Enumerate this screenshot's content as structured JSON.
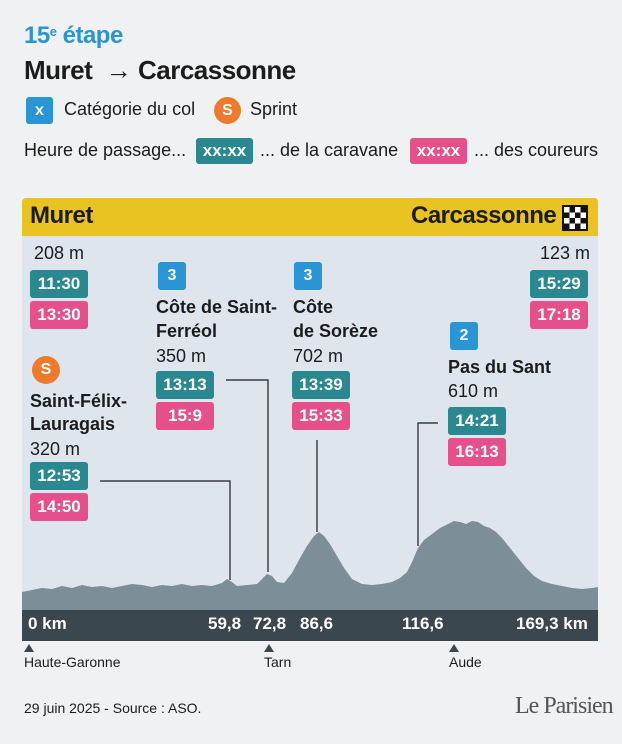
{
  "header": {
    "stage_number": "15",
    "stage_suffix": "e",
    "stage_word": "étape",
    "route_from": "Muret",
    "route_arrow": "→",
    "route_to": "Carcassonne"
  },
  "legend": {
    "category_badge": "x",
    "category_label": "Catégorie du col",
    "sprint_badge": "S",
    "sprint_label": "Sprint",
    "passage_label": "Heure de passage...",
    "caravan_chip": "xx:xx",
    "caravan_label": "... de la caravane",
    "riders_chip": "xx:xx",
    "riders_label": "... des coureurs"
  },
  "colors": {
    "blue": "#2a95d4",
    "orange": "#ee7b2d",
    "teal": "#2a8891",
    "pink": "#e5508a",
    "yellow": "#e8c321",
    "dark": "#3a474e",
    "profile": "#7c8e97"
  },
  "profile": {
    "start_name": "Muret",
    "finish_name": "Carcassonne",
    "start": {
      "altitude": "208 m",
      "caravan": "11:30",
      "riders": "13:30"
    },
    "finish": {
      "altitude": "123 m",
      "caravan": "15:29",
      "riders": "17:18"
    },
    "points": [
      {
        "badge": "S",
        "name1": "Saint-Félix-",
        "name2": "Lauragais",
        "altitude": "320 m",
        "caravan": "12:53",
        "riders": "14:50",
        "km": "59,8"
      },
      {
        "badge": "3",
        "name1": "Côte de Saint-",
        "name2": "Ferréol",
        "altitude": "350 m",
        "caravan": "13:13",
        "riders": "15:9",
        "km": "72,8"
      },
      {
        "badge": "3",
        "name1": "Côte",
        "name2": "de Sorèze",
        "altitude": "702 m",
        "caravan": "13:39",
        "riders": "15:33",
        "km": "86,6"
      },
      {
        "badge": "2",
        "name1": "Pas du Sant",
        "altitude": "610 m",
        "caravan": "14:21",
        "riders": "16:13",
        "km": "116,6"
      }
    ],
    "km_start": "0 km",
    "km_end": "169,3 km"
  },
  "regions": [
    "Haute-Garonne",
    "Tarn",
    "Aude"
  ],
  "footer": {
    "source": "29 juin 2025 - Source : ASO.",
    "logo": "Le Parisien"
  }
}
